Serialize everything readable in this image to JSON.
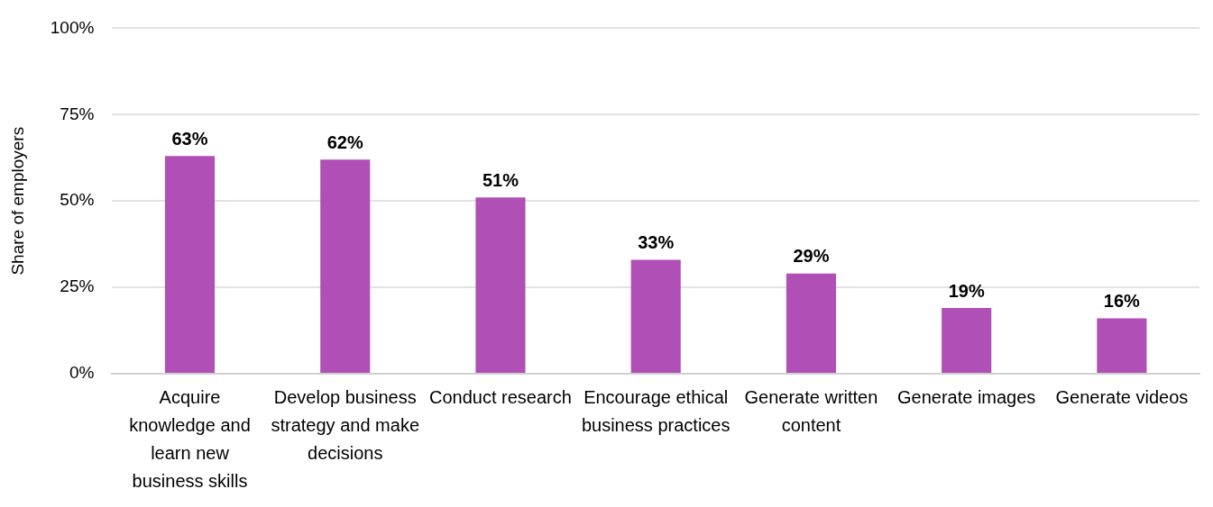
{
  "chart_data": {
    "type": "bar",
    "ylabel": "Share of employers",
    "categories": [
      "Acquire knowledge and learn new business skills",
      "Develop business strategy and make decisions",
      "Conduct research",
      "Encourage ethical business practices",
      "Generate written content",
      "Generate images",
      "Generate videos"
    ],
    "values": [
      63,
      62,
      51,
      33,
      29,
      19,
      16
    ],
    "value_labels": [
      "63%",
      "62%",
      "51%",
      "33%",
      "29%",
      "19%",
      "16%"
    ],
    "color": "#b04fb5",
    "ylim": [
      0,
      100
    ],
    "yticks": [
      {
        "value": 0,
        "label": "0%"
      },
      {
        "value": 25,
        "label": "25%"
      },
      {
        "value": 50,
        "label": "50%"
      },
      {
        "value": 75,
        "label": "75%"
      },
      {
        "value": 100,
        "label": "100%"
      }
    ],
    "grid": "y",
    "legend": false
  }
}
